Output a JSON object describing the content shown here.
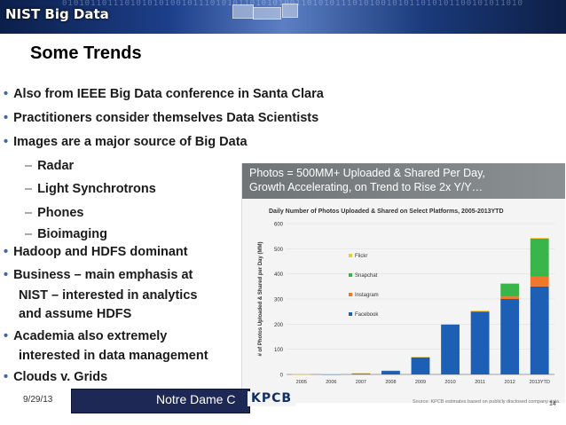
{
  "header": {
    "logo_text": "NIST Big Data",
    "binary_text": "010101101110101010100101110101011010101001101010111010100101011010101100101011010"
  },
  "slide": {
    "title": "Some Trends",
    "bullets": [
      {
        "text": "Also from IEEE Big Data conference in Santa Clara",
        "level": 1
      },
      {
        "text": "Practitioners consider themselves Data Scientists",
        "level": 1
      },
      {
        "text": "Images are a major source of Big Data",
        "level": 1
      },
      {
        "text": "Radar",
        "level": 2
      },
      {
        "text": "Light Synchrotrons",
        "level": 2
      },
      {
        "text": "Phones",
        "level": 2
      },
      {
        "text": "Bioimaging",
        "level": 2
      },
      {
        "text": "Hadoop and HDFS dominant",
        "level": 1
      },
      {
        "text": "Business – main emphasis at",
        "level": 1
      },
      {
        "text": "NIST – interested in analytics",
        "level": 0
      },
      {
        "text": "and assume HDFS",
        "level": 0
      },
      {
        "text": "Academia also extremely",
        "level": 1
      },
      {
        "text": "interested in data management",
        "level": 0
      },
      {
        "text": "Clouds v. Grids",
        "level": 1
      }
    ],
    "bullet_char": "•",
    "dash_char": "–"
  },
  "footer": {
    "date": "9/29/13",
    "center_text": "Notre Dame C",
    "page_number": "14"
  },
  "photo": {
    "header_line1": "Photos = 500MM+ Uploaded & Shared Per Day,",
    "header_line2": "Growth Accelerating, on Trend to Rise 2x Y/Y…",
    "brand": "KPCB",
    "source": "Source: KPCB estimates based on publicly disclosed company data."
  },
  "colors": {
    "facebook": "#1d5fb5",
    "instagram": "#f0772b",
    "snapchat": "#39b54a",
    "flickr": "#f4c542"
  },
  "chart_data": {
    "type": "bar",
    "title": "Daily Number of Photos Uploaded & Shared on Select Platforms, 2005-2013YTD",
    "ylabel": "# of Photos Uploaded & Shared per Day (MM)",
    "xlabel": "",
    "ylim": [
      0,
      600
    ],
    "yticks": [
      0,
      100,
      200,
      300,
      400,
      500,
      600
    ],
    "categories": [
      "2005",
      "2006",
      "2007",
      "2008",
      "2009",
      "2010",
      "2011",
      "2012",
      "2013YTD"
    ],
    "stacked": true,
    "series": [
      {
        "name": "Facebook",
        "color": "#1d5fb5",
        "values": [
          0,
          1,
          3,
          14,
          68,
          198,
          250,
          300,
          350
        ]
      },
      {
        "name": "Instagram",
        "color": "#f0772b",
        "values": [
          0,
          0,
          0,
          0,
          0,
          0,
          1,
          10,
          40
        ]
      },
      {
        "name": "Snapchat",
        "color": "#39b54a",
        "values": [
          0,
          0,
          0,
          0,
          0,
          0,
          0,
          50,
          150
        ]
      },
      {
        "name": "Flickr",
        "color": "#f4c542",
        "values": [
          1,
          1,
          2,
          2,
          2,
          3,
          3,
          3,
          3
        ]
      }
    ],
    "legend_order": [
      "Flickr",
      "Snapchat",
      "Instagram",
      "Facebook"
    ],
    "legend_position": "upper-left"
  }
}
